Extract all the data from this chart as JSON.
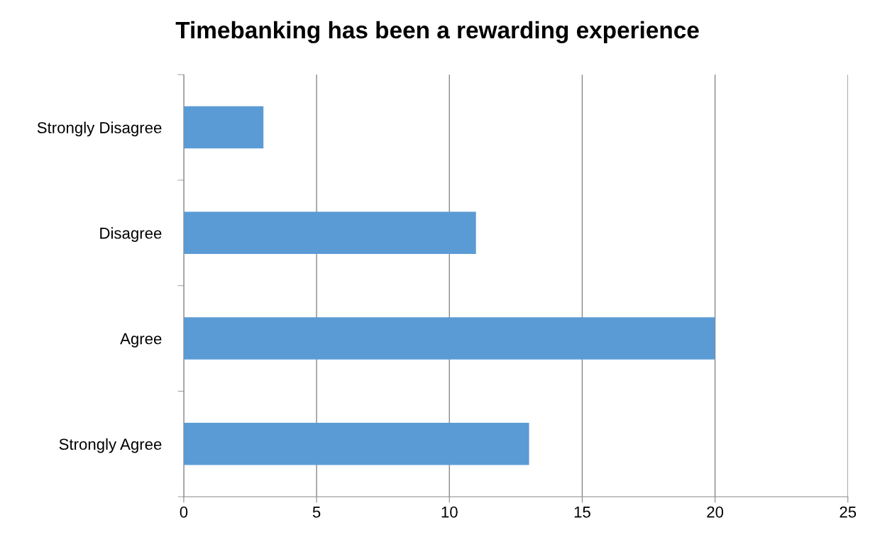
{
  "chart_data": {
    "type": "bar",
    "orientation": "horizontal",
    "title": "Timebanking has been a rewarding experience",
    "categories": [
      "Strongly Disagree",
      "Disagree",
      "Agree",
      "Strongly Agree"
    ],
    "values": [
      3,
      11,
      20,
      13
    ],
    "color": "#5b9bd5",
    "xlim": [
      0,
      25
    ],
    "xticks": [
      0,
      5,
      10,
      15,
      20,
      25
    ],
    "grid": "x",
    "legend": false
  }
}
